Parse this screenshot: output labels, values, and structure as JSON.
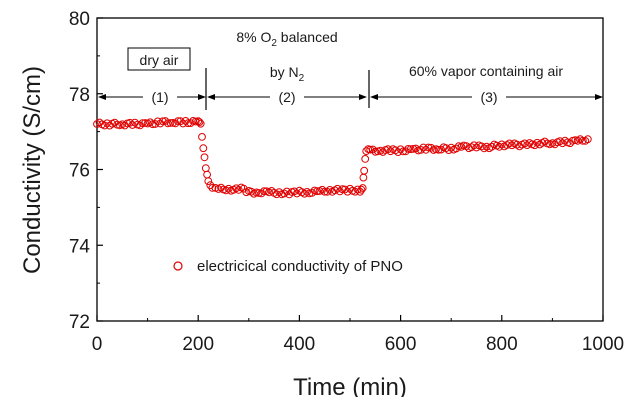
{
  "chart_data": {
    "type": "scatter",
    "xlabel": "Time (min)",
    "ylabel": "Conductivity (S/cm)",
    "xlim": [
      0,
      1000
    ],
    "ylim": [
      72,
      80
    ],
    "x_ticks": [
      "0",
      "200",
      "400",
      "600",
      "800",
      "1000"
    ],
    "y_ticks": [
      "72",
      "74",
      "76",
      "78",
      "80"
    ],
    "grid": false,
    "legend_position": "lower-center",
    "marker_color": "#e00000",
    "series": [
      {
        "name": "electricical conductivity of PNO",
        "marker": "open-circle",
        "points": [
          [
            0,
            77.2
          ],
          [
            25,
            77.2
          ],
          [
            50,
            77.2
          ],
          [
            75,
            77.2
          ],
          [
            100,
            77.2
          ],
          [
            125,
            77.25
          ],
          [
            150,
            77.25
          ],
          [
            175,
            77.25
          ],
          [
            200,
            77.25
          ],
          [
            205,
            77.2
          ],
          [
            210,
            76.6
          ],
          [
            215,
            76.0
          ],
          [
            220,
            75.7
          ],
          [
            228,
            75.55
          ],
          [
            240,
            75.5
          ],
          [
            255,
            75.45
          ],
          [
            270,
            75.45
          ],
          [
            285,
            75.5
          ],
          [
            300,
            75.4
          ],
          [
            320,
            75.4
          ],
          [
            340,
            75.4
          ],
          [
            360,
            75.38
          ],
          [
            380,
            75.38
          ],
          [
            400,
            75.4
          ],
          [
            420,
            75.4
          ],
          [
            440,
            75.42
          ],
          [
            460,
            75.45
          ],
          [
            480,
            75.45
          ],
          [
            500,
            75.45
          ],
          [
            520,
            75.45
          ],
          [
            525,
            75.5
          ],
          [
            528,
            76.0
          ],
          [
            532,
            76.5
          ],
          [
            540,
            76.5
          ],
          [
            560,
            76.5
          ],
          [
            580,
            76.5
          ],
          [
            600,
            76.5
          ],
          [
            625,
            76.52
          ],
          [
            650,
            76.55
          ],
          [
            675,
            76.55
          ],
          [
            700,
            76.55
          ],
          [
            725,
            76.6
          ],
          [
            750,
            76.6
          ],
          [
            775,
            76.6
          ],
          [
            800,
            76.65
          ],
          [
            825,
            76.65
          ],
          [
            850,
            76.65
          ],
          [
            875,
            76.7
          ],
          [
            900,
            76.7
          ],
          [
            925,
            76.72
          ],
          [
            950,
            76.75
          ],
          [
            970,
            76.8
          ]
        ]
      }
    ],
    "annotations": {
      "region1_label": "dry air",
      "region1_number": "(1)",
      "region2_label_line1_pre": "8% O",
      "region2_label_line1_sub": "2",
      "region2_label_line1_post": " balanced",
      "region2_label_line2_pre": "by N",
      "region2_label_line2_sub": "2",
      "region2_number": "(2)",
      "region3_label": "60% vapor containing air",
      "region3_number": "(3)"
    }
  }
}
